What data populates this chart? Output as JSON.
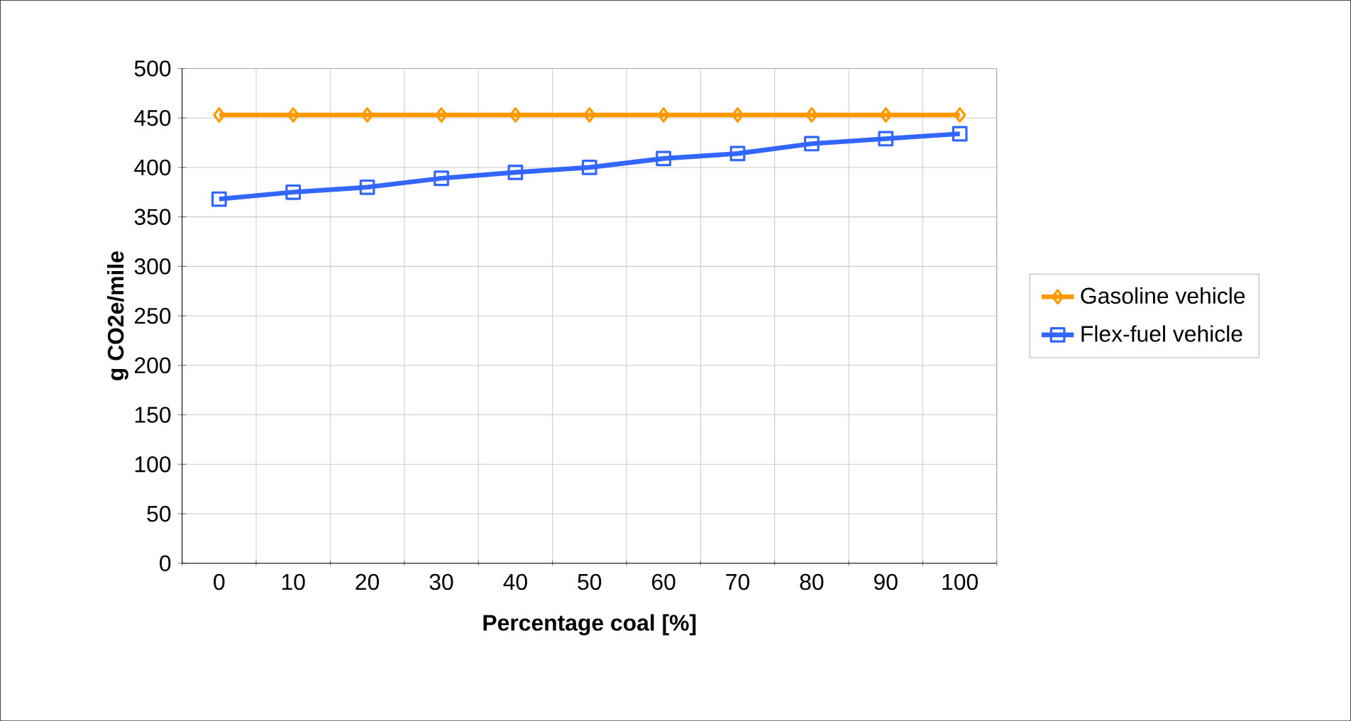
{
  "chart_data": {
    "type": "line",
    "xlabel": "Percentage coal [%]",
    "ylabel": "g CO2e/mile",
    "categories": [
      "0",
      "10",
      "20",
      "30",
      "40",
      "50",
      "60",
      "70",
      "80",
      "90",
      "100"
    ],
    "series": [
      {
        "name": "Gasoline vehicle",
        "color": "#ff9900",
        "marker": "diamond",
        "values": [
          453,
          453,
          453,
          453,
          453,
          453,
          453,
          453,
          453,
          453,
          453
        ]
      },
      {
        "name": "Flex-fuel vehicle",
        "color": "#3366ff",
        "marker": "square",
        "values": [
          368,
          375,
          380,
          389,
          395,
          400,
          409,
          414,
          424,
          429,
          434
        ]
      }
    ],
    "ylim": [
      0,
      500
    ],
    "yticks": [
      0,
      50,
      100,
      150,
      200,
      250,
      300,
      350,
      400,
      450,
      500
    ],
    "grid": true,
    "legend": "right",
    "line_style": "solid"
  }
}
